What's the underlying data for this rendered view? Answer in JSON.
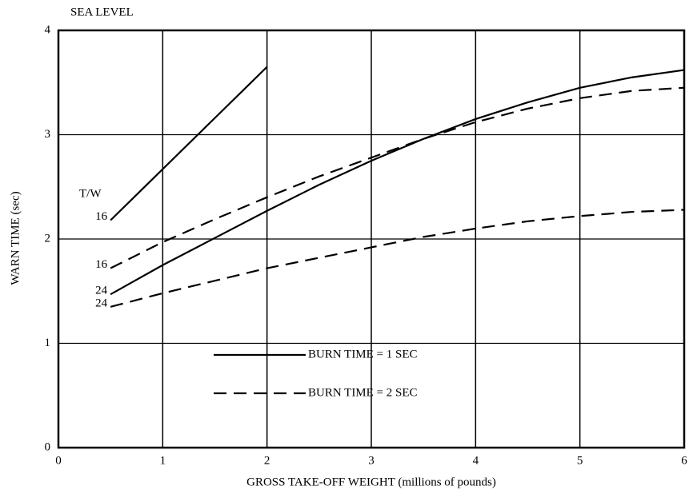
{
  "chart_data": {
    "type": "line",
    "title": "SEA LEVEL",
    "xlabel": "GROSS TAKE-OFF WEIGHT (millions of pounds)",
    "ylabel": "WARN TIME (sec)",
    "annotation": "T/W",
    "color": "#000000",
    "grid": true,
    "xlim": [
      0,
      6
    ],
    "xticks": [
      0,
      1,
      2,
      3,
      4,
      5,
      6
    ],
    "ylim": [
      0,
      4
    ],
    "yticks": [
      0,
      1,
      2,
      3,
      4
    ],
    "legend": [
      {
        "label": "BURN TIME = 1 SEC",
        "style": "solid"
      },
      {
        "label": "BURN TIME = 2 SEC",
        "style": "dashed"
      }
    ],
    "series": [
      {
        "label": "16",
        "style": "solid",
        "x": [
          0.5,
          1,
          1.5,
          2
        ],
        "values": [
          2.18,
          2.67,
          3.16,
          3.65
        ]
      },
      {
        "label": "16",
        "style": "dashed",
        "x": [
          0.5,
          1,
          1.5,
          2,
          2.5,
          3,
          3.5,
          4,
          4.5,
          5,
          5.5,
          6
        ],
        "values": [
          1.72,
          1.97,
          2.19,
          2.4,
          2.6,
          2.78,
          2.96,
          3.12,
          3.25,
          3.35,
          3.42,
          3.45
        ]
      },
      {
        "label": "24",
        "style": "solid",
        "x": [
          0.5,
          1,
          1.5,
          2,
          2.5,
          3,
          3.5,
          4,
          4.5,
          5,
          5.5,
          6
        ],
        "values": [
          1.47,
          1.75,
          2.01,
          2.27,
          2.52,
          2.75,
          2.96,
          3.15,
          3.31,
          3.45,
          3.55,
          3.62
        ]
      },
      {
        "label": "24",
        "style": "dashed",
        "x": [
          0.5,
          1,
          1.5,
          2,
          2.5,
          3,
          3.5,
          4,
          4.5,
          5,
          5.5,
          6
        ],
        "values": [
          1.35,
          1.48,
          1.6,
          1.72,
          1.82,
          1.92,
          2.02,
          2.1,
          2.17,
          2.22,
          2.26,
          2.28
        ]
      }
    ]
  }
}
